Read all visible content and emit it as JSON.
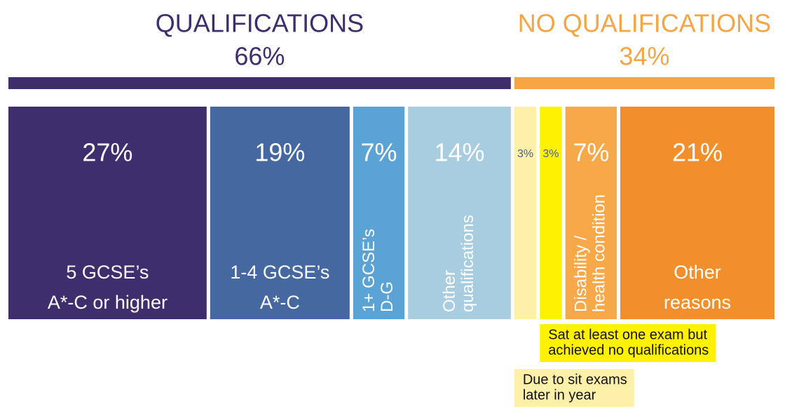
{
  "chart_data": {
    "type": "bar",
    "groups": [
      {
        "name": "QUALIFICATIONS",
        "value": 66,
        "value_label": "66%",
        "color": "#3f2e6e",
        "categories": [
          [
            "5 GCSE’s",
            "A*-C or higher"
          ],
          [
            "1-4 GCSE’s",
            "A*-C"
          ],
          [
            "1+ GCSE’s",
            "D-G"
          ],
          [
            "Other",
            "qualifications"
          ]
        ],
        "values": [
          27,
          19,
          7,
          14
        ],
        "value_labels": [
          "27%",
          "19%",
          "7%",
          "14%"
        ],
        "colors": [
          "#3f2e6e",
          "#4668a0",
          "#5ba3d4",
          "#a9cde0"
        ],
        "label_position": [
          "horizontal",
          "horizontal",
          "rotated",
          "rotated"
        ]
      },
      {
        "name": "NO QUALIFICATIONS",
        "value": 34,
        "value_label": "34%",
        "color": "#f6a545",
        "categories": [
          [
            "Due to sit exams",
            "later in year"
          ],
          [
            "Sat at least one exam but",
            "achieved no qualifications"
          ],
          [
            "Disability /",
            "health condition"
          ],
          [
            "Other",
            "reasons"
          ]
        ],
        "values": [
          3,
          3,
          7,
          21
        ],
        "value_labels": [
          "3%",
          "3%",
          "7%",
          "21%"
        ],
        "colors": [
          "#fdf0a8",
          "#fff200",
          "#f7a849",
          "#f18f2d"
        ],
        "label_position": [
          "below",
          "below",
          "rotated",
          "horizontal"
        ]
      }
    ]
  }
}
